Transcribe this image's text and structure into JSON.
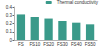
{
  "chart_data": {
    "type": "bar",
    "categories": [
      "FS",
      "FS10",
      "FS20",
      "FS30",
      "FS40",
      "FS50"
    ],
    "series": [
      {
        "name": "Thermal conductivity",
        "color": "#3a9a8a",
        "values": [
          0.31,
          0.28,
          0.26,
          0.23,
          0.21,
          0.19
        ]
      }
    ],
    "ylim": [
      0,
      0.4
    ],
    "yticks": [
      0,
      0.1,
      0.2,
      0.3,
      0.4
    ],
    "legend": "upper right",
    "grid": false
  }
}
